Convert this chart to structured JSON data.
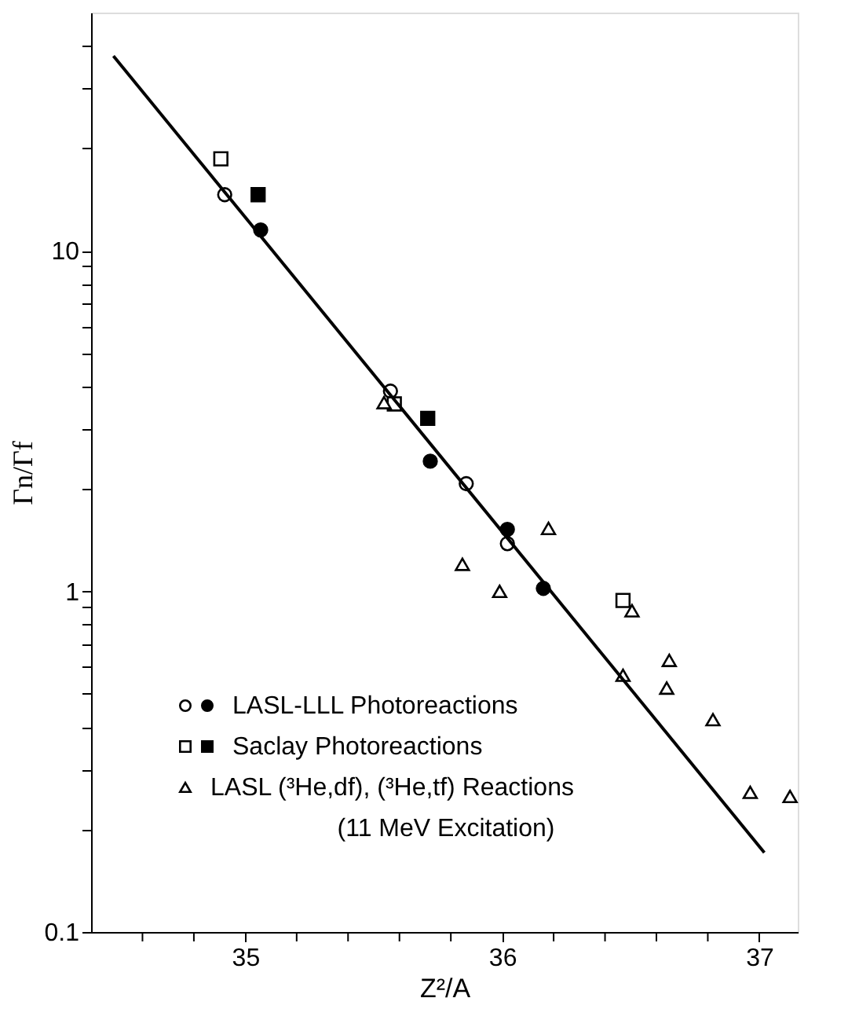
{
  "chart_data": {
    "type": "scatter",
    "xlabel": "Z²/A",
    "ylabel": "Γn/Γf",
    "log": "y",
    "grid": false,
    "legend": "bottom left",
    "xlim": [
      34.4,
      37.15
    ],
    "ylim": [
      0.1,
      50
    ],
    "xticks": [
      {
        "value": 34.6,
        "label": null
      },
      {
        "value": 34.8,
        "label": null
      },
      35,
      {
        "value": 35.2,
        "label": null
      },
      {
        "value": 35.4,
        "label": null
      },
      {
        "value": 35.6,
        "label": null
      },
      {
        "value": 35.8,
        "label": null
      },
      36,
      {
        "value": 36.2,
        "label": null
      },
      {
        "value": 36.4,
        "label": null
      },
      {
        "value": 36.6,
        "label": null
      },
      {
        "value": 36.8,
        "label": null
      },
      37
    ],
    "yticks": [
      0.1,
      {
        "value": 0.2,
        "label": null
      },
      {
        "value": 0.3,
        "label": null
      },
      {
        "value": 0.4,
        "label": null
      },
      {
        "value": 0.5,
        "label": null
      },
      {
        "value": 0.6,
        "label": null
      },
      {
        "value": 0.7,
        "label": null
      },
      {
        "value": 0.8,
        "label": null
      },
      {
        "value": 0.9,
        "label": null
      },
      1,
      {
        "value": 2,
        "label": null
      },
      {
        "value": 3,
        "label": null
      },
      {
        "value": 4,
        "label": null
      },
      {
        "value": 5,
        "label": null
      },
      {
        "value": 6,
        "label": null
      },
      {
        "value": 7,
        "label": null
      },
      {
        "value": 8,
        "label": null
      },
      {
        "value": 9,
        "label": null
      },
      10,
      {
        "value": 20,
        "label": null
      },
      {
        "value": 30,
        "label": null
      },
      {
        "value": 40,
        "label": null
      }
    ],
    "series": [
      {
        "color": "#ffffff",
        "marker": "circle",
        "x": [
          34.92,
          35.565,
          35.86,
          36.02
        ],
        "values": [
          14.6,
          3.87,
          2.07,
          1.38
        ]
      },
      {
        "name": "LASL-LLL Photoreactions",
        "color": "#000000",
        "marker": "circle",
        "x": [
          35.06,
          35.72,
          36.02,
          36.16
        ],
        "values": [
          11.5,
          2.41,
          1.52,
          1.02
        ]
      },
      {
        "color": "#ffffff",
        "marker": "square",
        "x": [
          34.905,
          35.58,
          36.47
        ],
        "values": [
          18.6,
          3.55,
          0.94
        ]
      },
      {
        "name": "Saclay Photoreactions",
        "color": "#000000",
        "marker": "square",
        "x": [
          35.05,
          35.71
        ],
        "values": [
          14.6,
          3.22
        ]
      },
      {
        "name": "LASL (³He,df), (³He,tf) Reactions\n(11 MeV Excitation)",
        "color": "#ffffff",
        "marker": "triangle",
        "x": [
          35.54,
          35.845,
          35.99,
          36.18,
          36.47,
          36.505,
          36.64,
          36.65,
          36.82,
          36.965,
          37.12
        ],
        "values": [
          3.58,
          1.2,
          1.0,
          1.53,
          0.567,
          0.877,
          0.52,
          0.627,
          0.42,
          0.257,
          0.25
        ]
      },
      {
        "type": "line",
        "color": "#000000",
        "line_style": "solid",
        "x": [
          34.487,
          37.02
        ],
        "values": [
          37.3,
          0.171
        ]
      }
    ]
  }
}
